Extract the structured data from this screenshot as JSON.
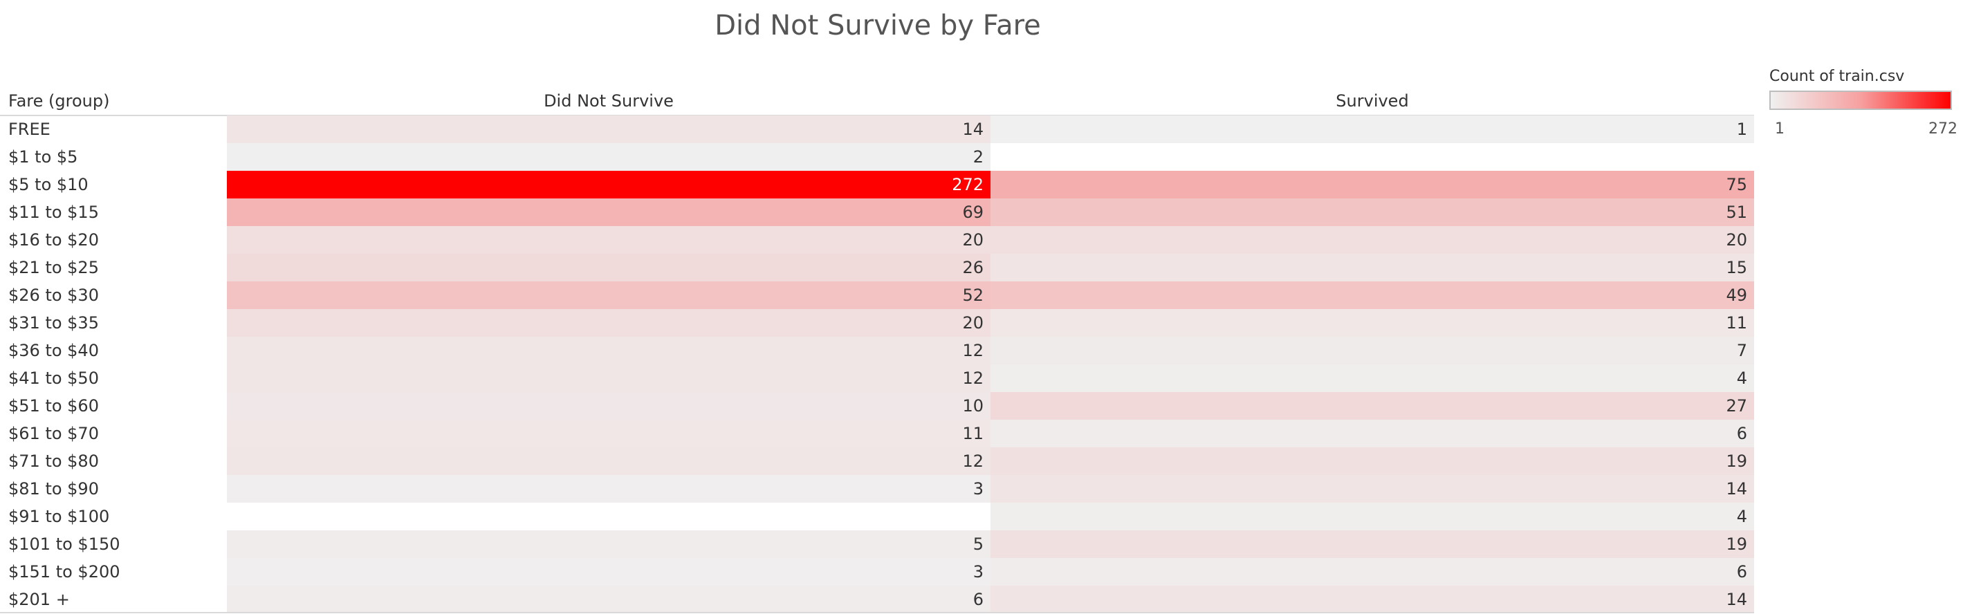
{
  "title": "Did Not Survive by Fare",
  "legend": {
    "title": "Count of train.csv",
    "min_label": "1",
    "max_label": "272",
    "color_low": "#f0f0f0",
    "color_high": "#ff0000"
  },
  "chart_data": {
    "type": "table",
    "title": "Did Not Survive by Fare",
    "row_header": "Fare (group)",
    "columns": [
      "Did Not Survive",
      "Survived"
    ],
    "rows": [
      {
        "label": "FREE",
        "values": [
          14,
          1
        ]
      },
      {
        "label": "$1 to $5",
        "values": [
          2,
          null
        ]
      },
      {
        "label": "$5 to $10",
        "values": [
          272,
          75
        ]
      },
      {
        "label": "$11 to $15",
        "values": [
          69,
          51
        ]
      },
      {
        "label": "$16 to $20",
        "values": [
          20,
          20
        ]
      },
      {
        "label": "$21 to $25",
        "values": [
          26,
          15
        ]
      },
      {
        "label": "$26 to $30",
        "values": [
          52,
          49
        ]
      },
      {
        "label": "$31 to $35",
        "values": [
          20,
          11
        ]
      },
      {
        "label": "$36 to $40",
        "values": [
          12,
          7
        ]
      },
      {
        "label": "$41 to $50",
        "values": [
          12,
          4
        ]
      },
      {
        "label": "$51 to $60",
        "values": [
          10,
          27
        ]
      },
      {
        "label": "$61 to $70",
        "values": [
          11,
          6
        ]
      },
      {
        "label": "$71 to $80",
        "values": [
          12,
          19
        ]
      },
      {
        "label": "$81 to $90",
        "values": [
          3,
          14
        ]
      },
      {
        "label": "$91 to $100",
        "values": [
          null,
          4
        ]
      },
      {
        "label": "$101 to $150",
        "values": [
          5,
          19
        ]
      },
      {
        "label": "$151 to $200",
        "values": [
          3,
          6
        ]
      },
      {
        "label": "$201 +",
        "values": [
          6,
          14
        ]
      }
    ]
  }
}
